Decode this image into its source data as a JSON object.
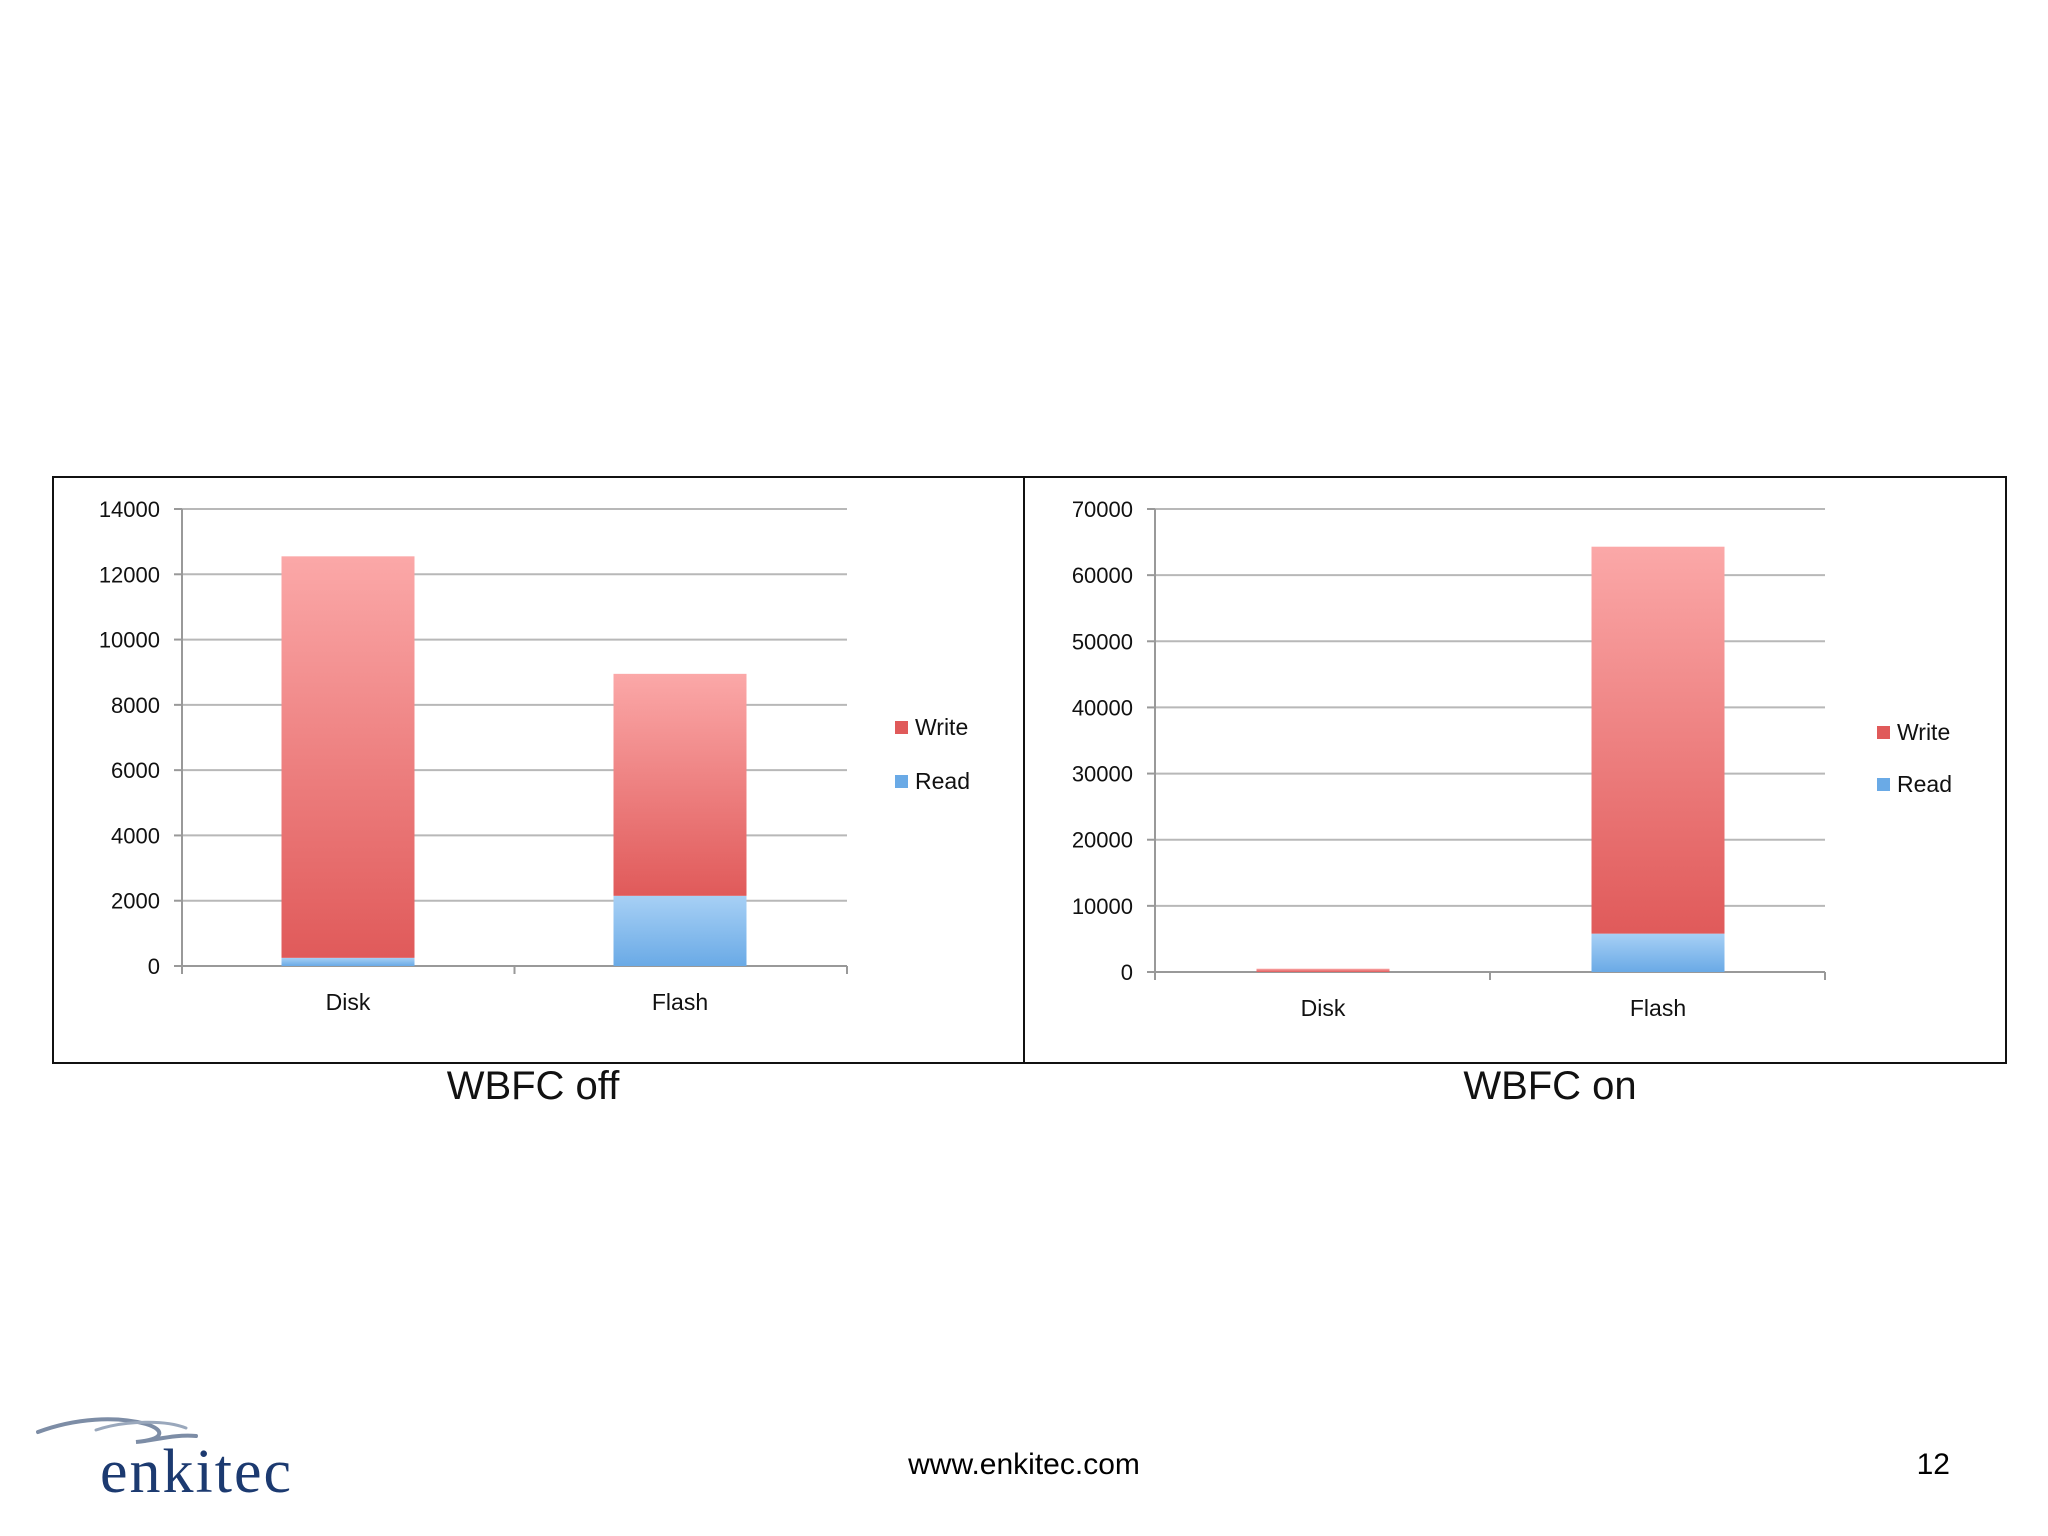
{
  "footer": {
    "url": "www.enkitec.com",
    "page_number": "12"
  },
  "logo": {
    "text": "enkitec"
  },
  "colors": {
    "write": "#e05a5a",
    "read": "#6aaae6",
    "grid": "#b8b8b8"
  },
  "chart_data": [
    {
      "type": "bar",
      "stacked": true,
      "title": "WBFC off",
      "categories": [
        "Disk",
        "Flash"
      ],
      "series": [
        {
          "name": "Read",
          "values": [
            250,
            2150
          ]
        },
        {
          "name": "Write",
          "values": [
            12300,
            6800
          ]
        }
      ],
      "ylim": [
        0,
        14000
      ],
      "yticks": [
        "0",
        "2000",
        "4000",
        "6000",
        "8000",
        "10000",
        "12000",
        "14000"
      ],
      "legend": [
        "Write",
        "Read"
      ],
      "legend_position": "right",
      "grid": true
    },
    {
      "type": "bar",
      "stacked": true,
      "title": "WBFC on",
      "categories": [
        "Disk",
        "Flash"
      ],
      "series": [
        {
          "name": "Read",
          "values": [
            0,
            5800
          ]
        },
        {
          "name": "Write",
          "values": [
            500,
            58500
          ]
        }
      ],
      "ylim": [
        0,
        70000
      ],
      "yticks": [
        "0",
        "10000",
        "20000",
        "30000",
        "40000",
        "50000",
        "60000",
        "70000"
      ],
      "legend": [
        "Write",
        "Read"
      ],
      "legend_position": "right",
      "grid": true
    }
  ]
}
